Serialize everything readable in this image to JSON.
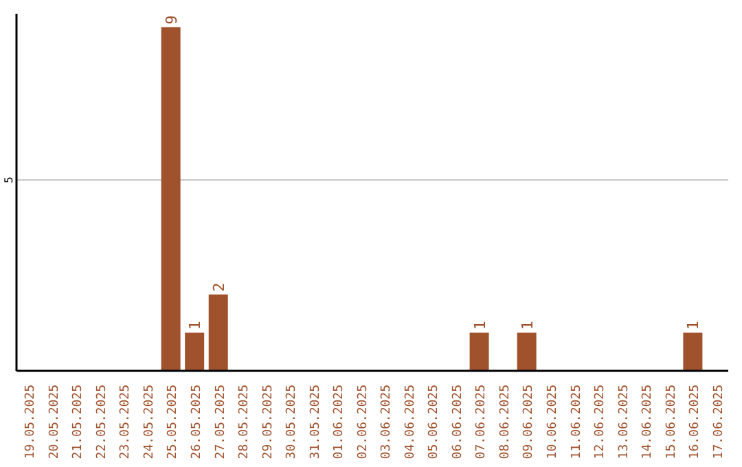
{
  "chart_data": {
    "type": "bar",
    "categories": [
      "19.05.2025",
      "20.05.2025",
      "21.05.2025",
      "22.05.2025",
      "23.05.2025",
      "24.05.2025",
      "25.05.2025",
      "26.05.2025",
      "27.05.2025",
      "28.05.2025",
      "29.05.2025",
      "30.05.2025",
      "31.05.2025",
      "01.06.2025",
      "02.06.2025",
      "03.06.2025",
      "04.06.2025",
      "05.06.2025",
      "06.06.2025",
      "07.06.2025",
      "08.06.2025",
      "09.06.2025",
      "10.06.2025",
      "11.06.2025",
      "12.06.2025",
      "13.06.2025",
      "14.06.2025",
      "15.06.2025",
      "16.06.2025",
      "17.06.2025"
    ],
    "values": [
      0,
      0,
      0,
      0,
      0,
      0,
      9,
      1,
      2,
      0,
      0,
      0,
      0,
      0,
      0,
      0,
      0,
      0,
      0,
      1,
      0,
      1,
      0,
      0,
      0,
      0,
      0,
      0,
      1,
      0
    ],
    "value_labels": [
      null,
      null,
      null,
      null,
      null,
      null,
      "9",
      "1",
      "2",
      null,
      null,
      null,
      null,
      null,
      null,
      null,
      null,
      null,
      null,
      "1",
      null,
      "1",
      null,
      null,
      null,
      null,
      null,
      null,
      "1",
      null
    ],
    "color": "#a0522d",
    "ylim": [
      0,
      9.35
    ],
    "yticks": [
      5
    ],
    "grid": "y"
  }
}
